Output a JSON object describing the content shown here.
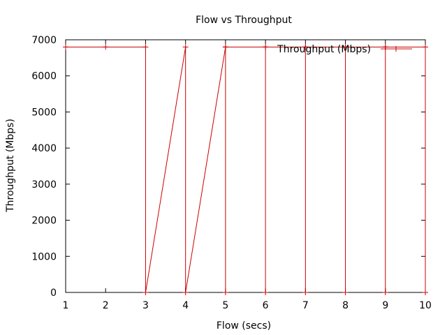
{
  "chart_data": {
    "type": "line",
    "title": "Flow vs Throughput",
    "xlabel": "Flow (secs)",
    "ylabel": "Throughput (Mbps)",
    "xlim": [
      1,
      10
    ],
    "ylim": [
      0,
      7000
    ],
    "x_ticks": [
      1,
      2,
      3,
      4,
      5,
      6,
      7,
      8,
      9,
      10
    ],
    "y_ticks": [
      0,
      1000,
      2000,
      3000,
      4000,
      5000,
      6000,
      7000
    ],
    "grid": false,
    "legend_position": "top-right",
    "series": [
      {
        "name": "Throughput (Mbps)",
        "color": "#cc0000",
        "marker": "plus",
        "points": [
          [
            1,
            6800
          ],
          [
            2,
            6800
          ],
          [
            3,
            6800
          ],
          [
            3,
            0
          ],
          [
            4,
            6800
          ],
          [
            4,
            0
          ],
          [
            5,
            6800
          ],
          [
            5,
            0
          ],
          [
            5,
            6800
          ],
          [
            6,
            6800
          ],
          [
            6,
            0
          ],
          [
            6,
            6800
          ],
          [
            7,
            6800
          ],
          [
            7,
            0
          ],
          [
            7,
            6800
          ],
          [
            8,
            6800
          ],
          [
            8,
            0
          ],
          [
            8,
            6800
          ],
          [
            9,
            6800
          ],
          [
            9,
            0
          ],
          [
            9,
            6800
          ],
          [
            10,
            6800
          ],
          [
            10,
            0
          ]
        ]
      }
    ]
  }
}
